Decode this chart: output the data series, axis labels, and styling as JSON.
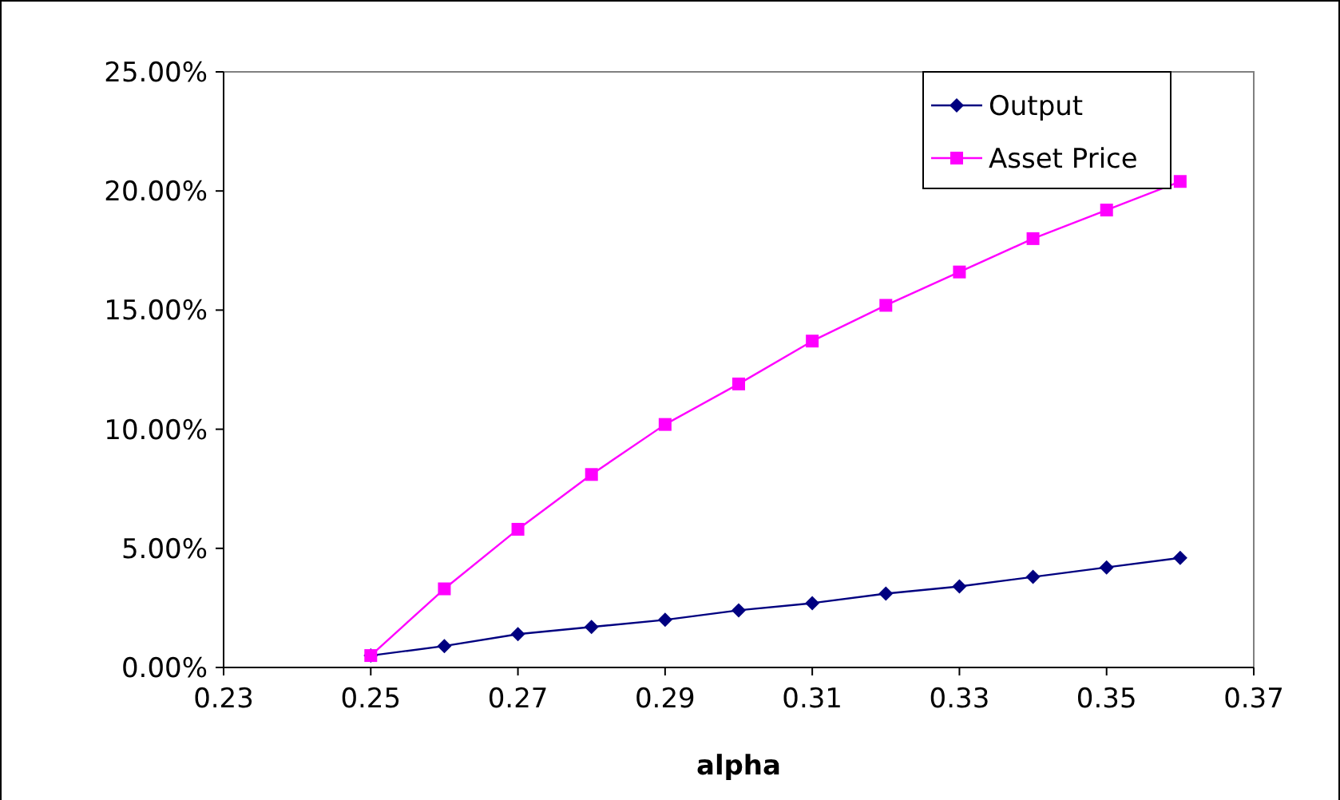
{
  "chart_data": {
    "type": "line",
    "xlabel": "alpha",
    "x": [
      0.25,
      0.26,
      0.27,
      0.28,
      0.29,
      0.3,
      0.31,
      0.32,
      0.33,
      0.34,
      0.35,
      0.36
    ],
    "xlim": [
      0.23,
      0.37
    ],
    "xticks": [
      0.23,
      0.25,
      0.27,
      0.29,
      0.31,
      0.33,
      0.35,
      0.37
    ],
    "ylim": [
      0,
      25
    ],
    "yticks": [
      {
        "value": 0,
        "label": "0.00%"
      },
      {
        "value": 5,
        "label": "5.00%"
      },
      {
        "value": 10,
        "label": "10.00%"
      },
      {
        "value": 15,
        "label": "15.00%"
      },
      {
        "value": 20,
        "label": "20.00%"
      },
      {
        "value": 25,
        "label": "25.00%"
      }
    ],
    "grid": false,
    "legend": "top right",
    "line_style": "solid",
    "series": [
      {
        "name": "Output",
        "color": "#000080",
        "marker": "diamond",
        "values": [
          0.5,
          0.9,
          1.4,
          1.7,
          2.0,
          2.4,
          2.7,
          3.1,
          3.4,
          3.8,
          4.2,
          4.6
        ]
      },
      {
        "name": "Asset Price",
        "color": "#ff00ff",
        "marker": "square",
        "values": [
          0.5,
          3.3,
          5.8,
          8.1,
          10.2,
          11.9,
          13.7,
          15.2,
          16.6,
          18.0,
          19.2,
          20.4
        ]
      }
    ]
  }
}
